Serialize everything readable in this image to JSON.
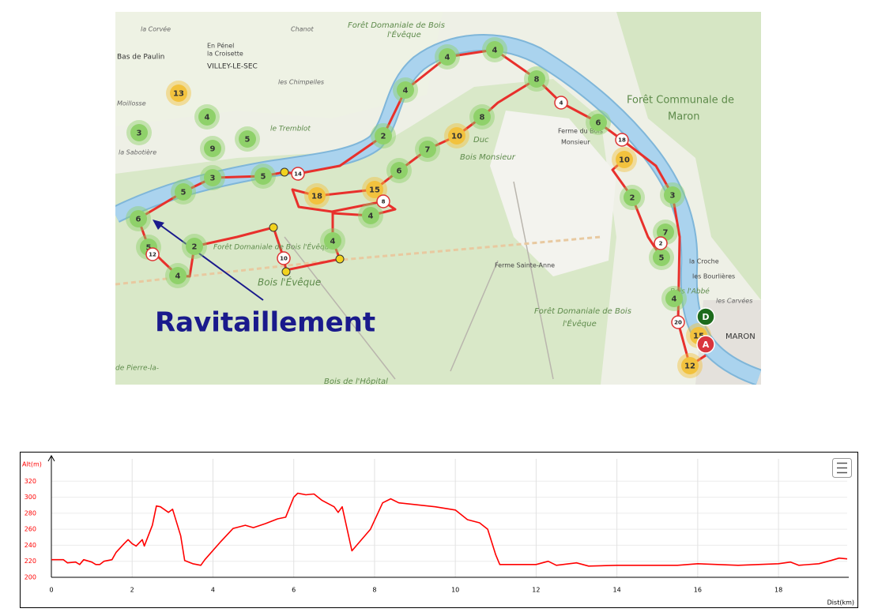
{
  "map": {
    "places": [
      "la Corvée",
      "Chanot",
      "Bas de Paulin",
      "En Pénel",
      "la Croisette",
      "VILLEY-LE-SEC",
      "les Chimpelles",
      "Forêt Domaniale de Bois",
      "l'Évêque",
      "Moillosse",
      "le Tremblot",
      "la Sabotière",
      "Duc",
      "Bois Monsieur",
      "Ferme du Bois",
      "Monsieur",
      "Forêt Communale de",
      "Maron",
      "Ferme Sainte-Anne",
      "la Croche",
      "les Bourlières",
      "les Carvées",
      "Bois l'Abbé",
      "Forêt Domaniale de Bois",
      "l'Évêque",
      "Forêt Domaniale de Bois l'Évêque",
      "Bois l'Évêque",
      "Bois de l'Hôpital",
      "MARON",
      "de Pierre-la-"
    ],
    "markers": [
      {
        "label": "4",
        "color": "#8fd16a"
      },
      {
        "label": "4",
        "color": "#8fd16a"
      },
      {
        "label": "4",
        "color": "#8fd16a"
      },
      {
        "label": "8",
        "color": "#8fd16a"
      },
      {
        "label": "6",
        "color": "#8fd16a"
      },
      {
        "label": "2",
        "color": "#8fd16a"
      },
      {
        "label": "8",
        "color": "#8fd16a"
      },
      {
        "label": "7",
        "color": "#8fd16a"
      },
      {
        "label": "6",
        "color": "#8fd16a"
      },
      {
        "label": "4",
        "color": "#8fd16a"
      },
      {
        "label": "3",
        "color": "#8fd16a"
      },
      {
        "label": "9",
        "color": "#8fd16a"
      },
      {
        "label": "5",
        "color": "#8fd16a"
      },
      {
        "label": "3",
        "color": "#8fd16a"
      },
      {
        "label": "5",
        "color": "#8fd16a"
      },
      {
        "label": "5",
        "color": "#8fd16a"
      },
      {
        "label": "6",
        "color": "#8fd16a"
      },
      {
        "label": "5",
        "color": "#8fd16a"
      },
      {
        "label": "2",
        "color": "#8fd16a"
      },
      {
        "label": "4",
        "color": "#8fd16a"
      },
      {
        "label": "4",
        "color": "#8fd16a"
      },
      {
        "label": "4",
        "color": "#8fd16a"
      },
      {
        "label": "2",
        "color": "#8fd16a"
      },
      {
        "label": "3",
        "color": "#8fd16a"
      },
      {
        "label": "7",
        "color": "#8fd16a"
      },
      {
        "label": "5",
        "color": "#8fd16a"
      },
      {
        "label": "4",
        "color": "#8fd16a"
      },
      {
        "label": "13",
        "color": "#f2c23e"
      },
      {
        "label": "10",
        "color": "#f2c23e"
      },
      {
        "label": "10",
        "color": "#f2c23e"
      },
      {
        "label": "18",
        "color": "#f2c23e"
      },
      {
        "label": "15",
        "color": "#f2c23e"
      },
      {
        "label": "15",
        "color": "#f2c23e"
      },
      {
        "label": "12",
        "color": "#f2c23e"
      },
      {
        "label": "14",
        "color": "#ffffff"
      },
      {
        "label": "4",
        "color": "#ffffff"
      },
      {
        "label": "18",
        "color": "#ffffff"
      },
      {
        "label": "8",
        "color": "#ffffff"
      },
      {
        "label": "12",
        "color": "#ffffff"
      },
      {
        "label": "10",
        "color": "#ffffff"
      },
      {
        "label": "2",
        "color": "#ffffff"
      },
      {
        "label": "20",
        "color": "#ffffff"
      }
    ],
    "start": "D",
    "end": "A",
    "annotation": "Ravitaillement"
  },
  "chart_data": {
    "type": "line",
    "ylabel": "Alt(m)",
    "xlabel": "Dist(km)",
    "color": "#ff0000",
    "x": [
      0,
      0.3,
      0.4,
      0.6,
      0.7,
      0.8,
      1.0,
      1.1,
      1.2,
      1.3,
      1.5,
      1.6,
      1.8,
      1.9,
      2.0,
      2.1,
      2.25,
      2.3,
      2.5,
      2.6,
      2.7,
      2.9,
      3.0,
      3.2,
      3.3,
      3.5,
      3.7,
      3.8,
      4.2,
      4.5,
      4.8,
      5.0,
      5.3,
      5.6,
      5.8,
      6.0,
      6.1,
      6.3,
      6.5,
      6.7,
      7.0,
      7.1,
      7.2,
      7.44,
      7.9,
      8.2,
      8.4,
      8.6,
      9.5,
      10.0,
      10.3,
      10.6,
      10.8,
      11.0,
      11.1,
      12.0,
      12.3,
      12.5,
      13.0,
      13.3,
      14.0,
      15.5,
      16.0,
      17.0,
      18.0,
      18.3,
      18.5,
      19.0,
      19.3,
      19.5,
      19.7
    ],
    "values": [
      222,
      222,
      218,
      219,
      216,
      222,
      219,
      216,
      216,
      220,
      222,
      231,
      242,
      247,
      242,
      239,
      247,
      239,
      265,
      289,
      288,
      281,
      285,
      252,
      221,
      217,
      215,
      222,
      245,
      261,
      265,
      262,
      267,
      273,
      275,
      300,
      305,
      303,
      304,
      296,
      288,
      281,
      288,
      233,
      260,
      293,
      298,
      293,
      288,
      284,
      272,
      268,
      260,
      228,
      216,
      216,
      220,
      215,
      218,
      214,
      215,
      215,
      217,
      215,
      217,
      219,
      215,
      217,
      221,
      224,
      223
    ],
    "xlim": [
      0,
      19.7
    ],
    "ylim": [
      200,
      340
    ],
    "xticks": [
      0,
      2,
      4,
      6,
      8,
      10,
      12,
      14,
      16,
      18
    ],
    "yticks": [
      200,
      220,
      240,
      260,
      280,
      300,
      320
    ],
    "grid": true
  }
}
